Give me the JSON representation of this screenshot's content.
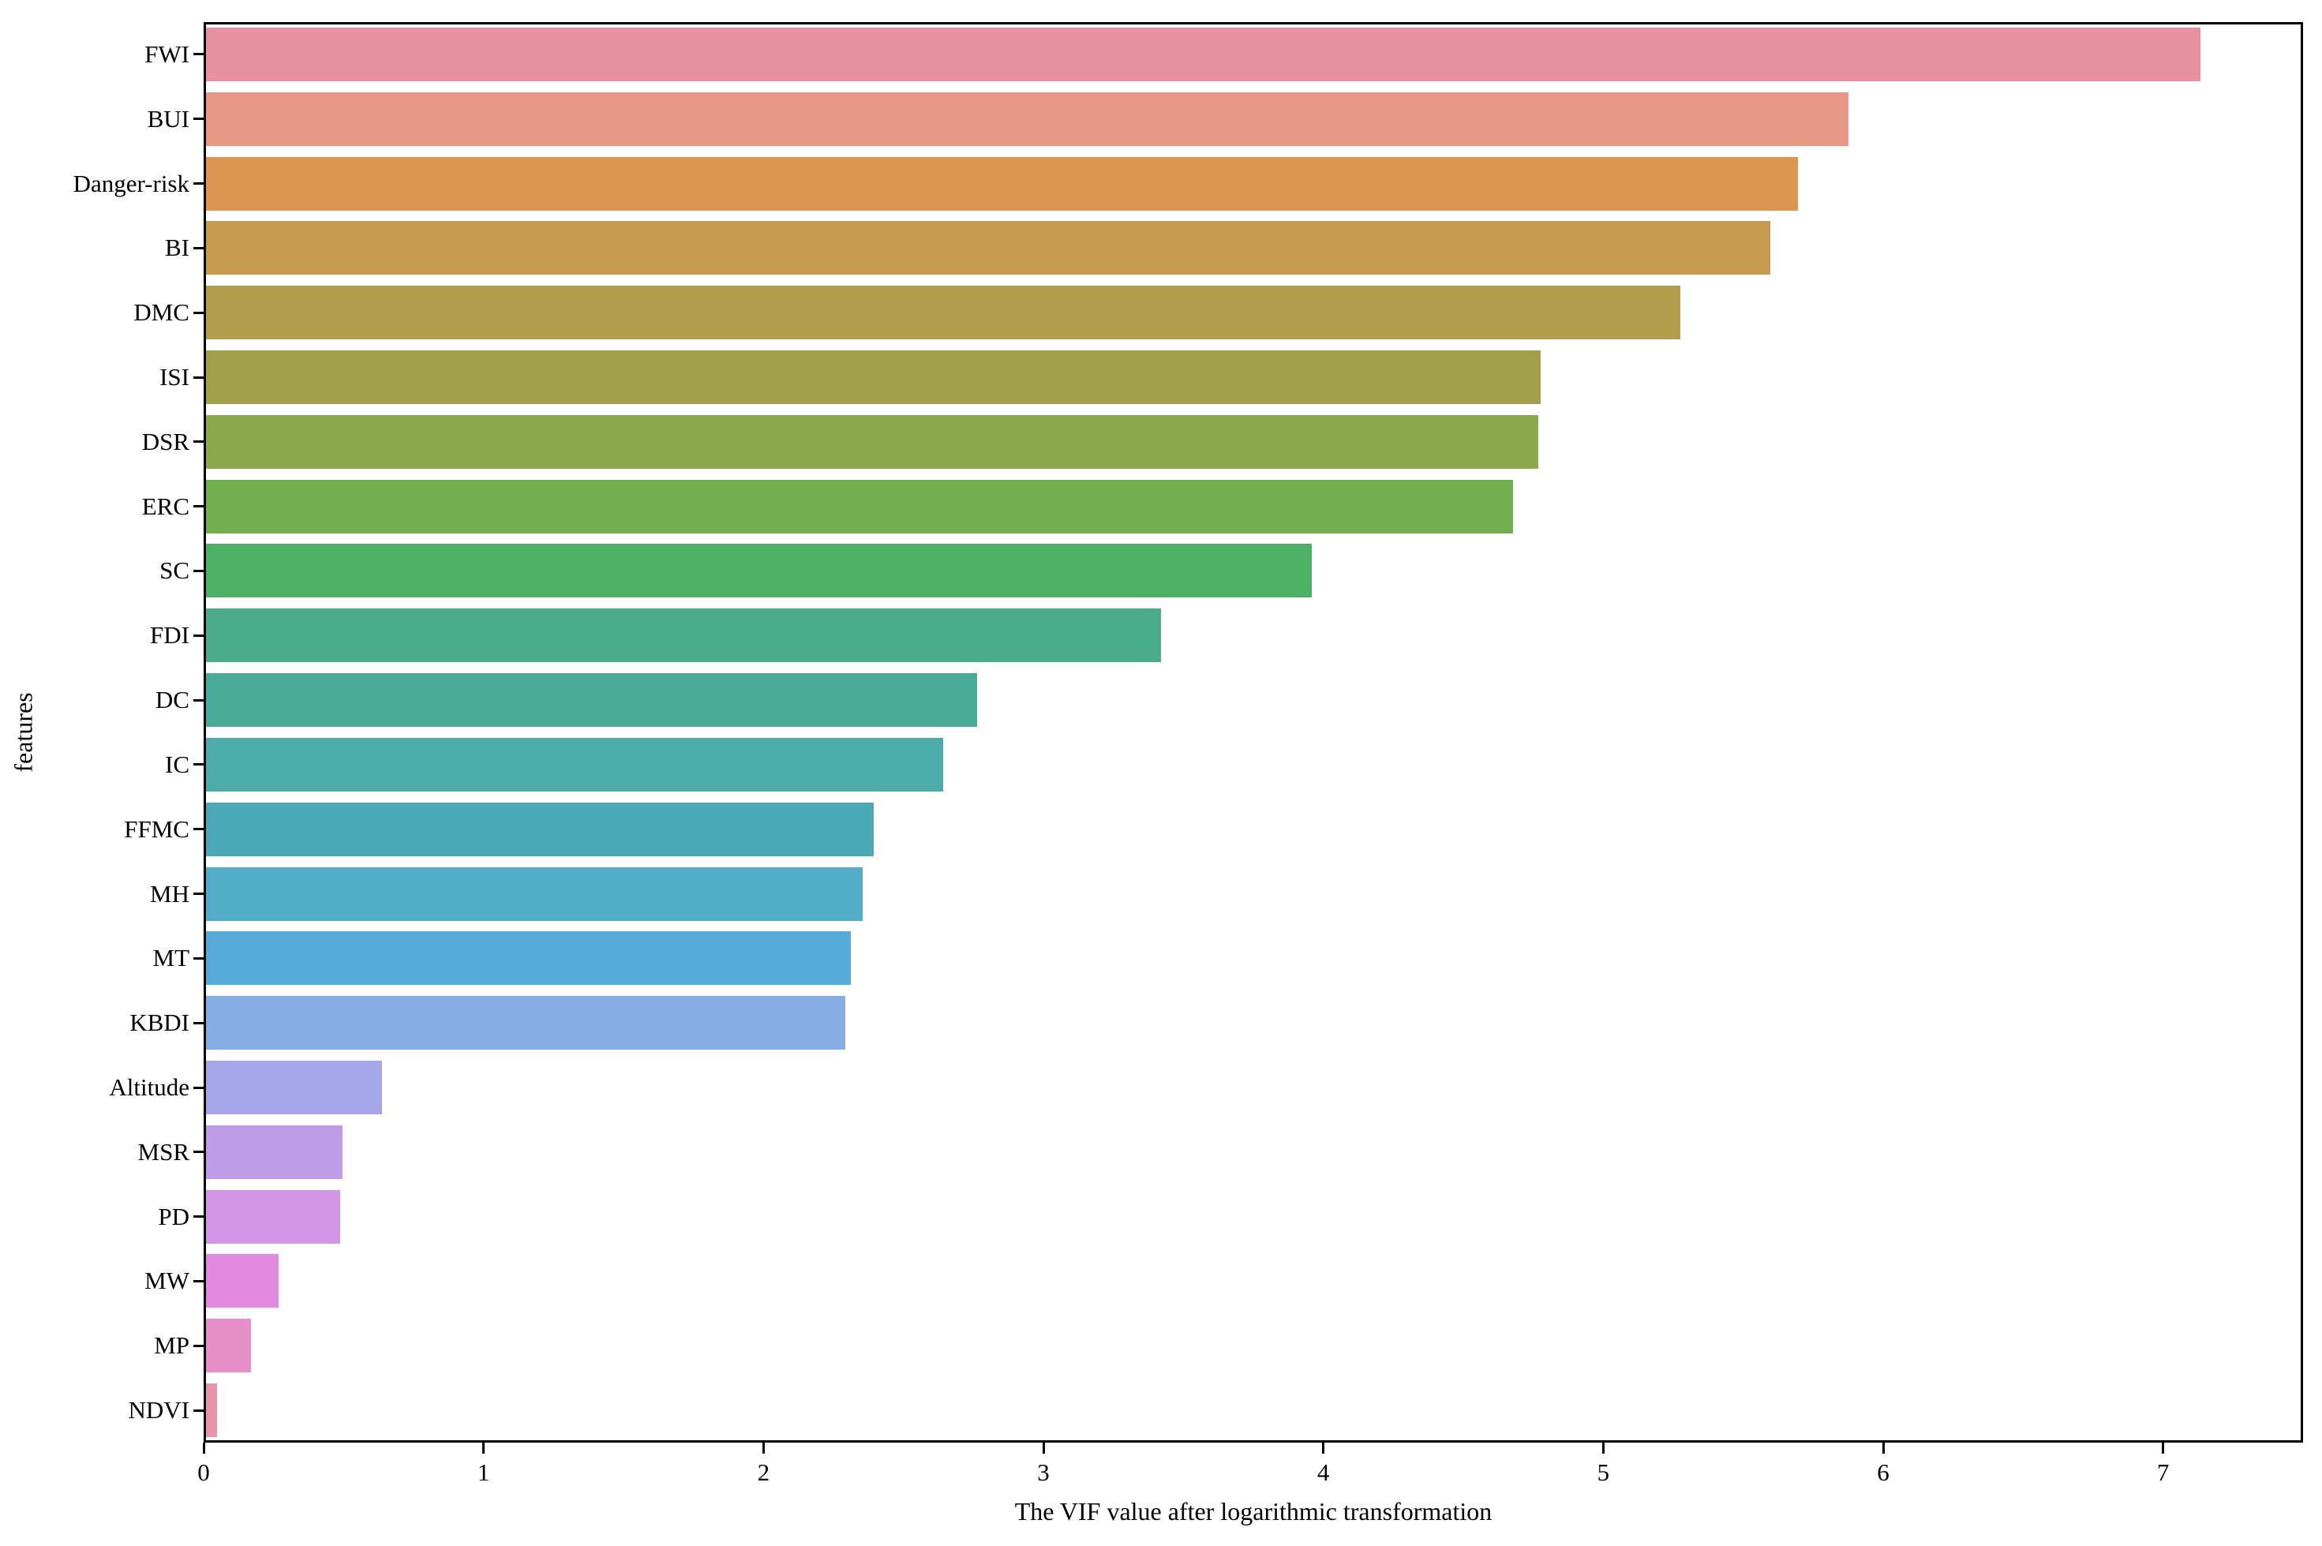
{
  "figure": {
    "background": "#ffffff",
    "text_color": "#000000"
  },
  "chart_data": {
    "type": "bar",
    "orientation": "horizontal",
    "title": "",
    "xlabel": "The VIF value after logarithmic transformation",
    "ylabel": "features",
    "xlim": [
      0,
      7.5
    ],
    "xticks": [
      "0",
      "1",
      "2",
      "3",
      "4",
      "5",
      "6",
      "7"
    ],
    "xtick_values": [
      0,
      1,
      2,
      3,
      4,
      5,
      6,
      7
    ],
    "grid": false,
    "categories": [
      "FWI",
      "BUI",
      "Danger-risk",
      "BI",
      "DMC",
      "ISI",
      "DSR",
      "ERC",
      "SC",
      "FDI",
      "DC",
      "IC",
      "FFMC",
      "MH",
      "MT",
      "KBDI",
      "Altitude",
      "MSR",
      "PD",
      "MW",
      "MP",
      "NDVI"
    ],
    "values": [
      7.14,
      5.88,
      5.7,
      5.6,
      5.28,
      4.78,
      4.77,
      4.68,
      3.96,
      3.42,
      2.76,
      2.64,
      2.39,
      2.35,
      2.31,
      2.29,
      0.63,
      0.49,
      0.48,
      0.26,
      0.16,
      0.04
    ],
    "colors": [
      "#e690a0",
      "#e89685",
      "#dd9552",
      "#c79b50",
      "#b19d4b",
      "#a0a04a",
      "#8ba84c",
      "#71ae4e",
      "#4cb065",
      "#4bac8b",
      "#4aab97",
      "#4bacaa",
      "#4ba9b7",
      "#52adc8",
      "#57abd8",
      "#85aee5",
      "#a6a5e9",
      "#c09ce8",
      "#d495e6",
      "#e28adf",
      "#e78ec8",
      "#ea94ab"
    ]
  }
}
